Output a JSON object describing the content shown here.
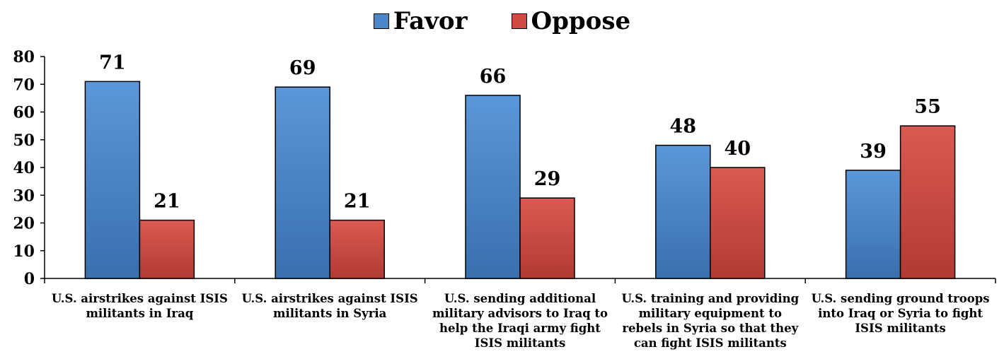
{
  "chart_data": {
    "type": "bar",
    "categories": [
      [
        "U.S. airstrikes against ISIS",
        "militants in Iraq"
      ],
      [
        "U.S. airstrikes against ISIS",
        "militants in Syria"
      ],
      [
        "U.S. sending additional",
        "military advisors to Iraq to",
        "help the Iraqi army fight",
        "ISIS militants"
      ],
      [
        "U.S. training and providing",
        "military equipment to",
        "rebels in Syria so that they",
        "can fight ISIS militants"
      ],
      [
        "U.S. sending ground troops",
        "into Iraq or Syria to fight",
        "ISIS militants"
      ]
    ],
    "series": [
      {
        "name": "Favor",
        "values": [
          71,
          69,
          66,
          48,
          39
        ],
        "color": "#4a86c8"
      },
      {
        "name": "Oppose",
        "values": [
          21,
          21,
          29,
          40,
          55
        ],
        "color": "#cf4a43"
      }
    ],
    "title": "",
    "xlabel": "",
    "ylabel": "",
    "ylim": [
      0,
      80
    ],
    "yticks": [
      "0",
      "10",
      "20",
      "30",
      "40",
      "50",
      "60",
      "70",
      "80"
    ],
    "grid": false,
    "legend_position": "top-center",
    "data_labels": true
  }
}
